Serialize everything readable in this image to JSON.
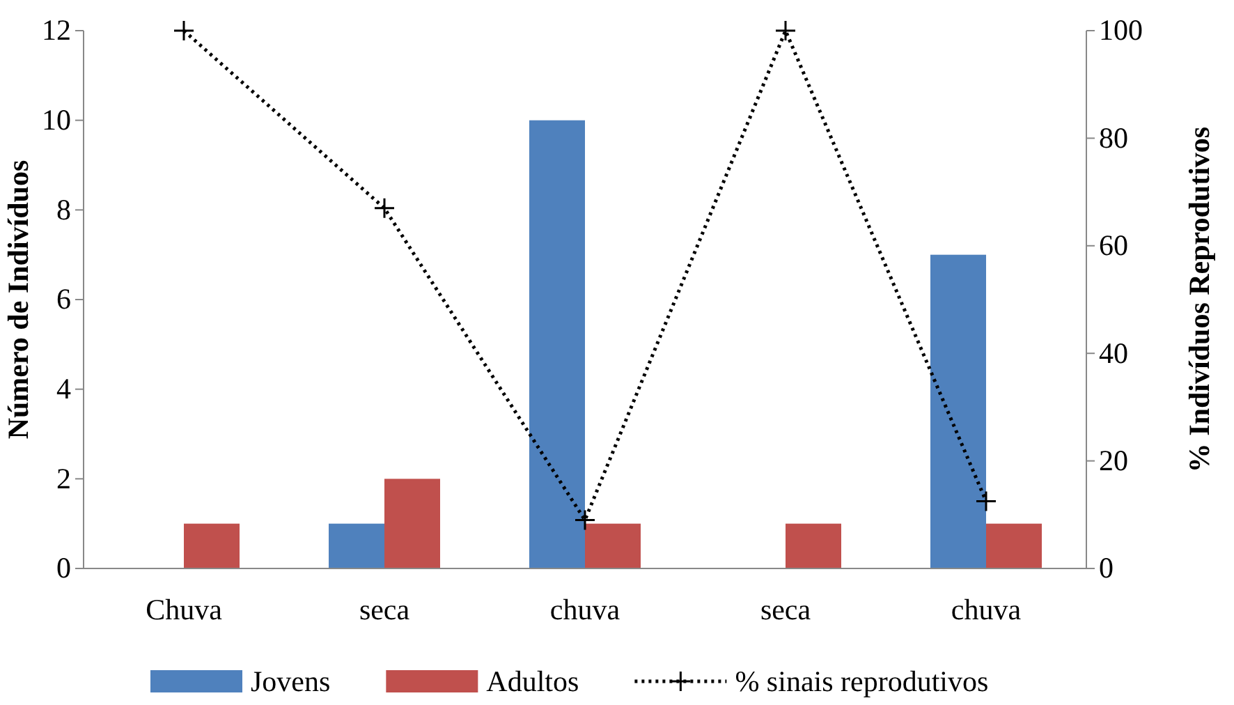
{
  "chart_data": {
    "type": "bar",
    "ylabel": "Número de Indivíduos",
    "y2label": "% Indivíduos Reprodutivos",
    "categories": [
      "Chuva",
      "seca",
      "chuva",
      "seca",
      "chuva"
    ],
    "series": [
      {
        "name": "Jovens",
        "color": "#4f81bd",
        "values": [
          0,
          1,
          10,
          0,
          7
        ]
      },
      {
        "name": "Adultos",
        "color": "#c0504d",
        "values": [
          1,
          2,
          1,
          1,
          1
        ]
      },
      {
        "name": "% sinais reprodutivos",
        "type": "line",
        "axis": "y2",
        "color": "#000000",
        "line_style": "dotted",
        "marker": "cross",
        "values": [
          100,
          67,
          9,
          100,
          12.5
        ]
      }
    ],
    "ylim": [
      0,
      12
    ],
    "yticks": [
      0,
      2,
      4,
      6,
      8,
      10,
      12
    ],
    "y2lim": [
      0,
      100
    ],
    "y2ticks": [
      0,
      20,
      40,
      60,
      80,
      100
    ],
    "grid": false,
    "legend": "bottom"
  }
}
